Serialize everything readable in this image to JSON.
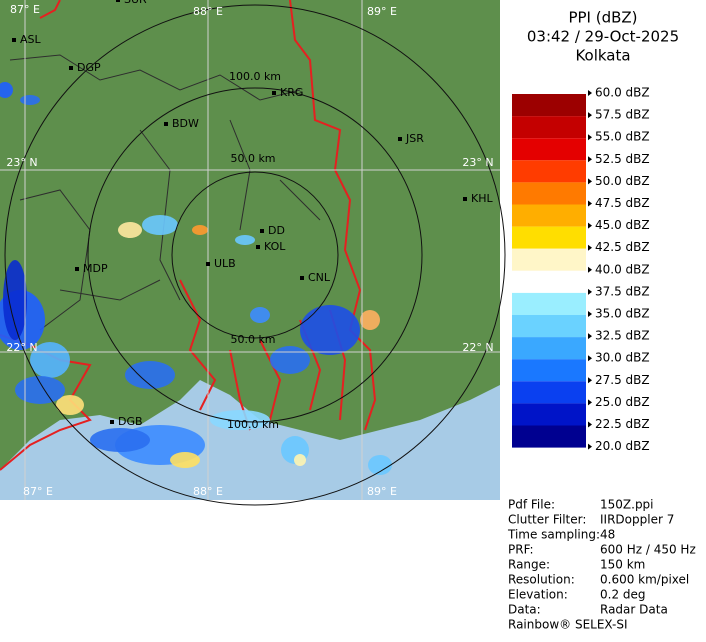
{
  "header": {
    "product": "PPI (dBZ)",
    "datetime": "03:42 / 29-Oct-2025",
    "site": "Kolkata"
  },
  "legend": [
    "60.0 dBZ",
    "57.5 dBZ",
    "55.0 dBZ",
    "52.5 dBZ",
    "50.0 dBZ",
    "47.5 dBZ",
    "45.0 dBZ",
    "42.5 dBZ",
    "40.0 dBZ",
    "37.5 dBZ",
    "35.0 dBZ",
    "32.5 dBZ",
    "30.0 dBZ",
    "27.5 dBZ",
    "25.0 dBZ",
    "22.5 dBZ",
    "20.0 dBZ"
  ],
  "map": {
    "grid_labels": [
      "87° E",
      "88° E",
      "89° E",
      "23° N",
      "23° N",
      "22° N",
      "22° N",
      "87° E",
      "88° E",
      "89° E"
    ],
    "ring_labels": [
      "100.0 km",
      "50.0 km",
      "50.0 km",
      "100.0 km"
    ],
    "places": [
      "SUR",
      "ASL",
      "DGP",
      "KRG",
      "BDW",
      "JSR",
      "KHL",
      "DD",
      "KOL",
      "ULB",
      "MDP",
      "CNL",
      "DGB"
    ]
  },
  "info": [
    [
      "Pdf File:",
      "150Z.ppi"
    ],
    [
      "Clutter Filter:",
      "IIRDoppler 7"
    ],
    [
      "Time sampling:",
      "48"
    ],
    [
      "PRF:",
      "600 Hz / 450 Hz"
    ],
    [
      "Range:",
      "150 km"
    ],
    [
      "Resolution:",
      "0.600 km/pixel"
    ],
    [
      "Elevation:",
      "0.2 deg"
    ],
    [
      "Data:",
      "Radar Data"
    ]
  ],
  "footer": "Rainbow® SELEX-SI"
}
